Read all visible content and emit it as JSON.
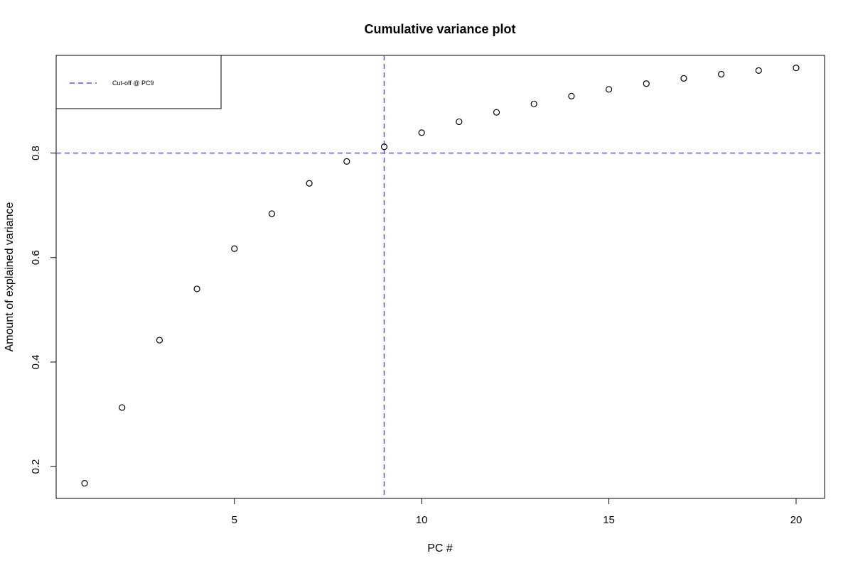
{
  "chart_data": {
    "type": "scatter",
    "title": "Cumulative variance plot",
    "xlabel": "PC #",
    "ylabel": "Amount of explained variance",
    "xlim": [
      0.24,
      20.76
    ],
    "ylim": [
      0.139,
      0.987
    ],
    "x_ticks": [
      5,
      10,
      15,
      20
    ],
    "y_ticks": [
      0.2,
      0.4,
      0.6,
      0.8
    ],
    "x_tick_labels": [
      "5",
      "10",
      "15",
      "20"
    ],
    "y_tick_labels": [
      "0.2",
      "0.4",
      "0.6",
      "0.8"
    ],
    "grid": false,
    "point_marker": "open-circle",
    "x": [
      1,
      2,
      3,
      4,
      5,
      6,
      7,
      8,
      9,
      10,
      11,
      12,
      13,
      14,
      15,
      16,
      17,
      18,
      19,
      20
    ],
    "y": [
      0.168,
      0.313,
      0.442,
      0.54,
      0.617,
      0.684,
      0.742,
      0.784,
      0.812,
      0.839,
      0.86,
      0.878,
      0.894,
      0.909,
      0.922,
      0.933,
      0.943,
      0.951,
      0.958,
      0.963
    ],
    "reference_lines": [
      {
        "orientation": "vertical",
        "value": 9,
        "style": "dashed",
        "color": "#5b5bd6"
      },
      {
        "orientation": "horizontal",
        "value": 0.8,
        "style": "dashed",
        "color": "#5b5bd6"
      }
    ],
    "legend": {
      "position": "top-left",
      "entries": [
        {
          "label": "Cut-off @ PC9",
          "style": "dashed",
          "color": "#5b5bd6"
        }
      ]
    }
  }
}
